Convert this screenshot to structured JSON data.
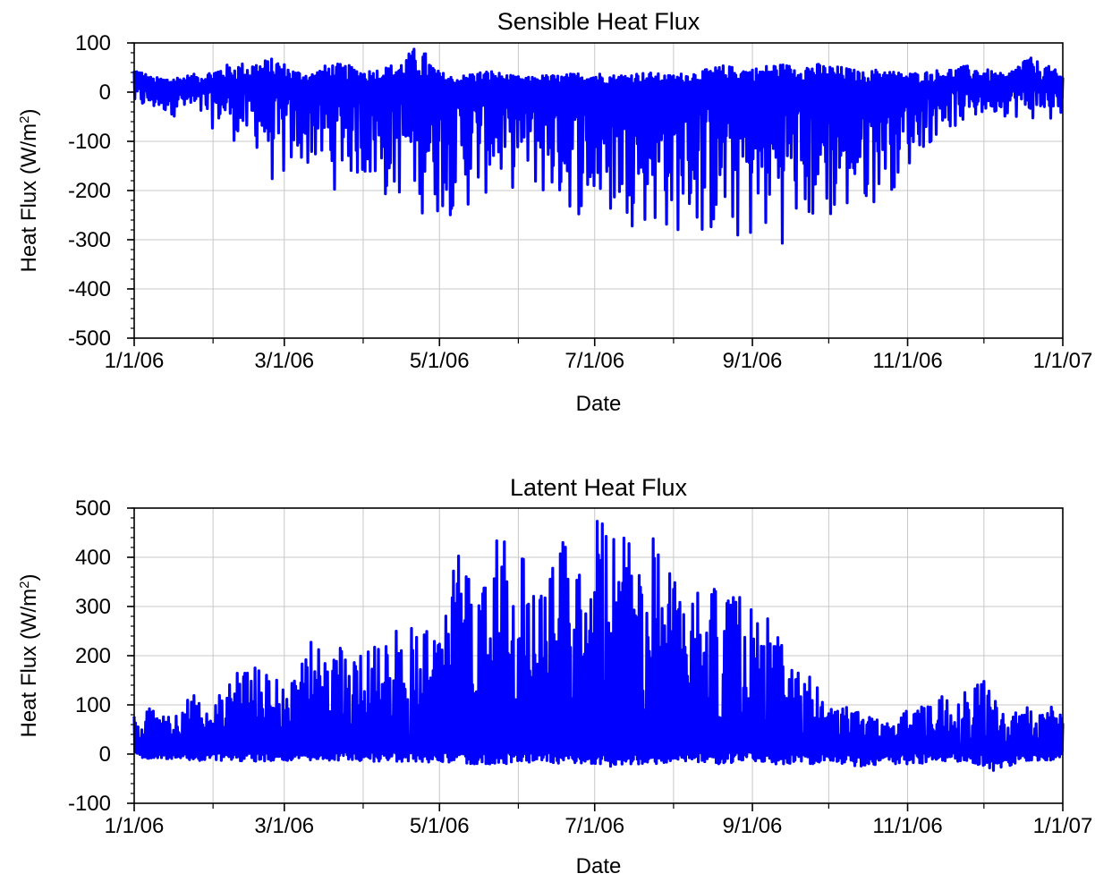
{
  "colors": {
    "series": "#0000ff",
    "grid": "#c8c8c8",
    "frame": "#000000"
  },
  "chart_data": [
    {
      "type": "line",
      "title": "Sensible Heat Flux",
      "xlabel": "Date",
      "ylabel_main": "Heat Flux (W/m",
      "ylabel_sup": "2",
      "ylabel_tail": ")",
      "x_range": [
        "1/1/06",
        "1/1/07"
      ],
      "ylim": [
        -500,
        100
      ],
      "x_tick_labels": [
        "1/1/06",
        "3/1/06",
        "5/1/06",
        "7/1/06",
        "9/1/06",
        "11/1/06",
        "1/1/07"
      ],
      "y_tick_labels": [
        "100",
        "0",
        "-100",
        "-200",
        "-300",
        "-400",
        "-500"
      ],
      "y_ticks": [
        100,
        0,
        -100,
        -200,
        -300,
        -400,
        -500
      ],
      "grid": true,
      "series": [
        {
          "sampling": "weekly envelope (estimated)",
          "x": [
            "1/1/06",
            "1/8/06",
            "1/15/06",
            "1/22/06",
            "1/29/06",
            "2/5/06",
            "2/12/06",
            "2/19/06",
            "2/26/06",
            "3/5/06",
            "3/12/06",
            "3/19/06",
            "3/26/06",
            "4/2/06",
            "4/9/06",
            "4/16/06",
            "4/23/06",
            "4/30/06",
            "5/7/06",
            "5/14/06",
            "5/21/06",
            "5/28/06",
            "6/4/06",
            "6/11/06",
            "6/18/06",
            "6/25/06",
            "7/2/06",
            "7/9/06",
            "7/16/06",
            "7/23/06",
            "7/30/06",
            "8/6/06",
            "8/13/06",
            "8/20/06",
            "8/27/06",
            "9/3/06",
            "9/10/06",
            "9/17/06",
            "9/24/06",
            "10/1/06",
            "10/8/06",
            "10/15/06",
            "10/22/06",
            "10/29/06",
            "11/5/06",
            "11/12/06",
            "11/19/06",
            "11/26/06",
            "12/3/06",
            "12/10/06",
            "12/17/06",
            "12/24/06",
            "12/31/06"
          ],
          "daily_max": [
            55,
            30,
            30,
            35,
            40,
            55,
            60,
            65,
            70,
            45,
            40,
            60,
            55,
            45,
            50,
            65,
            100,
            45,
            30,
            40,
            45,
            35,
            30,
            35,
            35,
            40,
            40,
            35,
            40,
            40,
            35,
            40,
            45,
            55,
            50,
            50,
            60,
            55,
            60,
            55,
            50,
            40,
            50,
            40,
            40,
            45,
            50,
            55,
            45,
            35,
            75,
            60,
            40
          ],
          "daily_min": [
            -40,
            -45,
            -50,
            -55,
            -75,
            -80,
            -120,
            -130,
            -225,
            -175,
            -165,
            -210,
            -190,
            -205,
            -245,
            -230,
            -255,
            -275,
            -255,
            -255,
            -215,
            -210,
            -200,
            -240,
            -255,
            -265,
            -290,
            -285,
            -275,
            -295,
            -315,
            -300,
            -330,
            -325,
            -335,
            -345,
            -320,
            -305,
            -310,
            -295,
            -285,
            -265,
            -210,
            -200,
            -135,
            -100,
            -80,
            -70,
            -50,
            -50,
            -60,
            -60,
            -80
          ]
        }
      ]
    },
    {
      "type": "line",
      "title": "Latent Heat Flux",
      "xlabel": "Date",
      "ylabel_main": "Heat Flux (W/m",
      "ylabel_sup": "2",
      "ylabel_tail": ")",
      "x_range": [
        "1/1/06",
        "1/1/07"
      ],
      "ylim": [
        -100,
        500
      ],
      "x_tick_labels": [
        "1/1/06",
        "3/1/06",
        "5/1/06",
        "7/1/06",
        "9/1/06",
        "11/1/06",
        "1/1/07"
      ],
      "y_tick_labels": [
        "500",
        "400",
        "300",
        "200",
        "100",
        "0",
        "-100"
      ],
      "y_ticks": [
        500,
        400,
        300,
        200,
        100,
        0,
        -100
      ],
      "grid": true,
      "series": [
        {
          "sampling": "weekly envelope (estimated)",
          "x": [
            "1/1/06",
            "1/8/06",
            "1/15/06",
            "1/22/06",
            "1/29/06",
            "2/5/06",
            "2/12/06",
            "2/19/06",
            "2/26/06",
            "3/5/06",
            "3/12/06",
            "3/19/06",
            "3/26/06",
            "4/2/06",
            "4/9/06",
            "4/16/06",
            "4/23/06",
            "4/30/06",
            "5/7/06",
            "5/14/06",
            "5/21/06",
            "5/28/06",
            "6/4/06",
            "6/11/06",
            "6/18/06",
            "6/25/06",
            "7/2/06",
            "7/9/06",
            "7/16/06",
            "7/23/06",
            "7/30/06",
            "8/6/06",
            "8/13/06",
            "8/20/06",
            "8/27/06",
            "9/3/06",
            "9/10/06",
            "9/17/06",
            "9/24/06",
            "10/1/06",
            "10/8/06",
            "10/15/06",
            "10/22/06",
            "10/29/06",
            "11/5/06",
            "11/12/06",
            "11/19/06",
            "11/26/06",
            "12/3/06",
            "12/10/06",
            "12/17/06",
            "12/24/06",
            "12/31/06"
          ],
          "daily_max": [
            80,
            95,
            75,
            125,
            110,
            135,
            200,
            175,
            180,
            150,
            240,
            235,
            205,
            245,
            260,
            250,
            285,
            270,
            405,
            405,
            440,
            440,
            400,
            345,
            445,
            420,
            500,
            455,
            430,
            455,
            395,
            370,
            360,
            330,
            320,
            295,
            265,
            170,
            160,
            100,
            100,
            90,
            70,
            90,
            95,
            110,
            150,
            155,
            160,
            60,
            110,
            105,
            95
          ],
          "daily_min": [
            -5,
            -10,
            -10,
            -15,
            -15,
            -15,
            -15,
            -15,
            -15,
            -15,
            -15,
            -15,
            -10,
            -15,
            -15,
            -15,
            -15,
            -20,
            -15,
            -20,
            -20,
            -20,
            -20,
            -15,
            -20,
            -20,
            -25,
            -25,
            -20,
            -20,
            -20,
            -15,
            -20,
            -20,
            -15,
            -15,
            -20,
            -20,
            -20,
            -20,
            -25,
            -25,
            -20,
            -20,
            -20,
            -15,
            -15,
            -15,
            -40,
            -25,
            -15,
            -15,
            -10
          ]
        }
      ]
    }
  ]
}
